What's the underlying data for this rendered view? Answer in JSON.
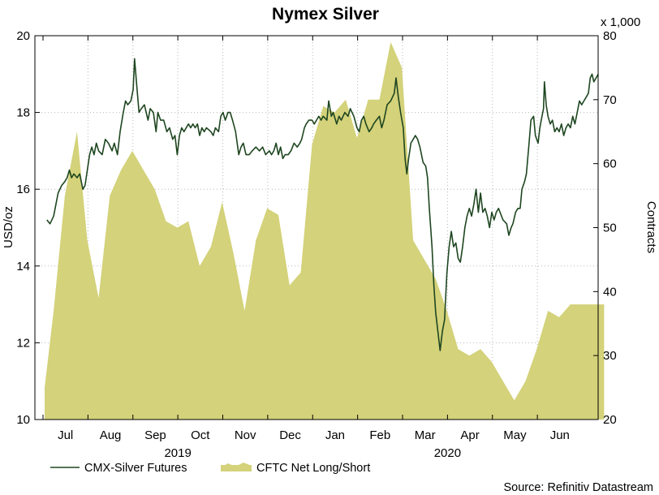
{
  "chart_data": {
    "type": "line",
    "title": "Nymex Silver",
    "left_axis": {
      "label": "USD/oz",
      "range": [
        10,
        20
      ],
      "ticks": [
        "10",
        "12",
        "14",
        "16",
        "18",
        "20"
      ],
      "tick_values": [
        10,
        12,
        14,
        16,
        18,
        20
      ]
    },
    "right_axis": {
      "label": "Contracts",
      "multiplier_label": "x 1,000",
      "range": [
        20,
        80
      ],
      "ticks": [
        "20",
        "30",
        "40",
        "50",
        "60",
        "70",
        "80"
      ],
      "tick_values": [
        20,
        30,
        40,
        50,
        60,
        70,
        80
      ]
    },
    "x_axis": {
      "range": [
        0,
        12
      ],
      "months": [
        "Jul",
        "Aug",
        "Sep",
        "Oct",
        "Nov",
        "Dec",
        "Jan",
        "Feb",
        "Mar",
        "Apr",
        "May",
        "Jun"
      ],
      "years": [
        {
          "label": "2019",
          "center": 3
        },
        {
          "label": "2020",
          "center": 9
        }
      ]
    },
    "grid": true,
    "legend": {
      "position": "bottom-left",
      "line_label": "CMX-Silver Futures",
      "area_label": "CFTC Net Long/Short"
    },
    "source": "Source: Refinitiv Datastream",
    "series": [
      {
        "name": "CMX-Silver Futures",
        "axis": "left",
        "color": "#1e4620",
        "points": [
          [
            0.05,
            15.2
          ],
          [
            0.12,
            15.1
          ],
          [
            0.2,
            15.3
          ],
          [
            0.3,
            15.9
          ],
          [
            0.38,
            16.1
          ],
          [
            0.45,
            16.2
          ],
          [
            0.5,
            16.3
          ],
          [
            0.55,
            16.5
          ],
          [
            0.6,
            16.3
          ],
          [
            0.65,
            16.4
          ],
          [
            0.72,
            16.3
          ],
          [
            0.78,
            16.4
          ],
          [
            0.85,
            16.0
          ],
          [
            0.9,
            16.1
          ],
          [
            0.95,
            16.5
          ],
          [
            1.0,
            16.9
          ],
          [
            1.05,
            17.1
          ],
          [
            1.1,
            16.9
          ],
          [
            1.15,
            17.2
          ],
          [
            1.2,
            17.0
          ],
          [
            1.28,
            16.9
          ],
          [
            1.35,
            17.3
          ],
          [
            1.42,
            17.2
          ],
          [
            1.5,
            17.0
          ],
          [
            1.55,
            17.2
          ],
          [
            1.62,
            16.9
          ],
          [
            1.68,
            17.5
          ],
          [
            1.75,
            18.0
          ],
          [
            1.8,
            18.3
          ],
          [
            1.85,
            18.2
          ],
          [
            1.92,
            18.3
          ],
          [
            1.97,
            18.6
          ],
          [
            2.0,
            19.4
          ],
          [
            2.05,
            18.7
          ],
          [
            2.1,
            18.0
          ],
          [
            2.15,
            18.1
          ],
          [
            2.22,
            18.2
          ],
          [
            2.3,
            17.8
          ],
          [
            2.35,
            18.1
          ],
          [
            2.42,
            18.0
          ],
          [
            2.48,
            17.5
          ],
          [
            2.52,
            18.0
          ],
          [
            2.58,
            17.8
          ],
          [
            2.65,
            17.8
          ],
          [
            2.72,
            17.5
          ],
          [
            2.78,
            17.6
          ],
          [
            2.85,
            17.3
          ],
          [
            2.9,
            17.4
          ],
          [
            2.95,
            16.9
          ],
          [
            3.0,
            17.4
          ],
          [
            3.05,
            17.6
          ],
          [
            3.1,
            17.5
          ],
          [
            3.15,
            17.6
          ],
          [
            3.2,
            17.7
          ],
          [
            3.25,
            17.6
          ],
          [
            3.3,
            17.7
          ],
          [
            3.35,
            17.6
          ],
          [
            3.4,
            17.7
          ],
          [
            3.45,
            17.4
          ],
          [
            3.5,
            17.6
          ],
          [
            3.55,
            17.5
          ],
          [
            3.6,
            17.6
          ],
          [
            3.7,
            17.5
          ],
          [
            3.75,
            17.4
          ],
          [
            3.8,
            17.6
          ],
          [
            3.87,
            17.5
          ],
          [
            3.92,
            17.9
          ],
          [
            3.97,
            18.0
          ],
          [
            4.02,
            17.8
          ],
          [
            4.08,
            18.0
          ],
          [
            4.13,
            18.0
          ],
          [
            4.18,
            17.8
          ],
          [
            4.25,
            17.5
          ],
          [
            4.32,
            16.9
          ],
          [
            4.37,
            17.1
          ],
          [
            4.42,
            17.2
          ],
          [
            4.48,
            16.9
          ],
          [
            4.55,
            16.9
          ],
          [
            4.62,
            17.0
          ],
          [
            4.7,
            17.1
          ],
          [
            4.78,
            17.0
          ],
          [
            4.85,
            17.1
          ],
          [
            4.92,
            16.9
          ],
          [
            5.0,
            17.0
          ],
          [
            5.05,
            16.9
          ],
          [
            5.1,
            17.0
          ],
          [
            5.15,
            17.2
          ],
          [
            5.2,
            16.9
          ],
          [
            5.25,
            17.1
          ],
          [
            5.3,
            16.8
          ],
          [
            5.35,
            16.9
          ],
          [
            5.42,
            16.9
          ],
          [
            5.48,
            17.0
          ],
          [
            5.55,
            17.2
          ],
          [
            5.62,
            17.1
          ],
          [
            5.68,
            17.2
          ],
          [
            5.72,
            17.3
          ],
          [
            5.78,
            17.6
          ],
          [
            5.82,
            17.7
          ],
          [
            5.88,
            17.8
          ],
          [
            5.95,
            17.8
          ],
          [
            6.0,
            17.7
          ],
          [
            6.05,
            17.8
          ],
          [
            6.1,
            17.9
          ],
          [
            6.15,
            17.8
          ],
          [
            6.2,
            17.9
          ],
          [
            6.28,
            17.8
          ],
          [
            6.32,
            18.3
          ],
          [
            6.38,
            17.9
          ],
          [
            6.42,
            18.0
          ],
          [
            6.5,
            17.7
          ],
          [
            6.55,
            17.9
          ],
          [
            6.6,
            17.8
          ],
          [
            6.68,
            18.0
          ],
          [
            6.75,
            17.9
          ],
          [
            6.8,
            18.1
          ],
          [
            6.88,
            17.9
          ],
          [
            6.95,
            17.6
          ],
          [
            7.0,
            17.5
          ],
          [
            7.05,
            17.8
          ],
          [
            7.1,
            17.9
          ],
          [
            7.15,
            17.7
          ],
          [
            7.22,
            17.5
          ],
          [
            7.28,
            17.6
          ],
          [
            7.32,
            17.7
          ],
          [
            7.38,
            17.8
          ],
          [
            7.45,
            17.9
          ],
          [
            7.5,
            17.6
          ],
          [
            7.55,
            17.8
          ],
          [
            7.62,
            18.2
          ],
          [
            7.7,
            18.3
          ],
          [
            7.78,
            18.5
          ],
          [
            7.82,
            18.9
          ],
          [
            7.87,
            18.4
          ],
          [
            7.92,
            18.0
          ],
          [
            7.98,
            17.6
          ],
          [
            8.02,
            16.8
          ],
          [
            8.06,
            16.4
          ],
          [
            8.1,
            16.8
          ],
          [
            8.15,
            17.2
          ],
          [
            8.2,
            17.3
          ],
          [
            8.25,
            17.4
          ],
          [
            8.3,
            17.3
          ],
          [
            8.35,
            17.1
          ],
          [
            8.42,
            16.7
          ],
          [
            8.48,
            16.6
          ],
          [
            8.52,
            16.3
          ],
          [
            8.56,
            15.5
          ],
          [
            8.62,
            14.5
          ],
          [
            8.66,
            13.5
          ],
          [
            8.7,
            12.8
          ],
          [
            8.75,
            12.3
          ],
          [
            8.8,
            11.8
          ],
          [
            8.85,
            12.3
          ],
          [
            8.9,
            12.6
          ],
          [
            8.95,
            13.8
          ],
          [
            9.0,
            14.5
          ],
          [
            9.05,
            14.9
          ],
          [
            9.1,
            14.5
          ],
          [
            9.15,
            14.6
          ],
          [
            9.2,
            14.2
          ],
          [
            9.25,
            14.1
          ],
          [
            9.3,
            14.5
          ],
          [
            9.35,
            15.0
          ],
          [
            9.4,
            15.3
          ],
          [
            9.45,
            15.5
          ],
          [
            9.5,
            15.3
          ],
          [
            9.55,
            15.6
          ],
          [
            9.6,
            16.0
          ],
          [
            9.65,
            15.4
          ],
          [
            9.7,
            15.9
          ],
          [
            9.75,
            15.4
          ],
          [
            9.8,
            15.5
          ],
          [
            9.85,
            15.3
          ],
          [
            9.9,
            15.0
          ],
          [
            9.95,
            15.4
          ],
          [
            10.0,
            15.2
          ],
          [
            10.05,
            15.4
          ],
          [
            10.1,
            15.5
          ],
          [
            10.2,
            15.2
          ],
          [
            10.28,
            15.1
          ],
          [
            10.33,
            14.8
          ],
          [
            10.38,
            15.0
          ],
          [
            10.42,
            15.1
          ],
          [
            10.48,
            15.4
          ],
          [
            10.53,
            15.5
          ],
          [
            10.58,
            15.5
          ],
          [
            10.62,
            16.0
          ],
          [
            10.68,
            16.2
          ],
          [
            10.72,
            16.4
          ],
          [
            10.78,
            17.2
          ],
          [
            10.82,
            17.8
          ],
          [
            10.88,
            17.9
          ],
          [
            10.92,
            17.4
          ],
          [
            10.98,
            17.2
          ],
          [
            11.02,
            17.6
          ],
          [
            11.05,
            17.8
          ],
          [
            11.1,
            18.1
          ],
          [
            11.12,
            18.8
          ],
          [
            11.16,
            18.2
          ],
          [
            11.2,
            17.9
          ],
          [
            11.25,
            17.7
          ],
          [
            11.3,
            17.8
          ],
          [
            11.35,
            17.5
          ],
          [
            11.4,
            17.6
          ],
          [
            11.45,
            17.5
          ],
          [
            11.5,
            17.7
          ],
          [
            11.55,
            17.4
          ],
          [
            11.6,
            17.6
          ],
          [
            11.65,
            17.7
          ],
          [
            11.7,
            17.6
          ],
          [
            11.75,
            17.9
          ],
          [
            11.8,
            17.7
          ],
          [
            11.85,
            18.0
          ],
          [
            11.9,
            18.3
          ],
          [
            11.95,
            18.2
          ],
          [
            12.0,
            18.3
          ],
          [
            12.05,
            18.4
          ],
          [
            12.1,
            18.5
          ],
          [
            12.14,
            18.9
          ],
          [
            12.18,
            19.0
          ],
          [
            12.22,
            18.8
          ],
          [
            12.27,
            18.9
          ],
          [
            12.32,
            19.0
          ]
        ]
      },
      {
        "name": "CFTC Net Long/Short",
        "axis": "right",
        "color": "#d4d27a",
        "points": [
          [
            0.0,
            25
          ],
          [
            0.2,
            37
          ],
          [
            0.45,
            55
          ],
          [
            0.72,
            65
          ],
          [
            0.95,
            48
          ],
          [
            1.2,
            39
          ],
          [
            1.45,
            55
          ],
          [
            1.7,
            59
          ],
          [
            1.95,
            62
          ],
          [
            2.2,
            59
          ],
          [
            2.45,
            56
          ],
          [
            2.7,
            51
          ],
          [
            2.95,
            50
          ],
          [
            3.2,
            51
          ],
          [
            3.45,
            44
          ],
          [
            3.7,
            47
          ],
          [
            3.95,
            54
          ],
          [
            4.2,
            46
          ],
          [
            4.45,
            37
          ],
          [
            4.7,
            48
          ],
          [
            4.95,
            53
          ],
          [
            5.2,
            52
          ],
          [
            5.45,
            41
          ],
          [
            5.7,
            43
          ],
          [
            5.95,
            63
          ],
          [
            6.2,
            69
          ],
          [
            6.45,
            68
          ],
          [
            6.7,
            70
          ],
          [
            6.95,
            64
          ],
          [
            7.2,
            70
          ],
          [
            7.45,
            70
          ],
          [
            7.7,
            79
          ],
          [
            7.95,
            75
          ],
          [
            8.2,
            48
          ],
          [
            8.45,
            45
          ],
          [
            8.7,
            42
          ],
          [
            8.95,
            37
          ],
          [
            9.2,
            31
          ],
          [
            9.45,
            30
          ],
          [
            9.7,
            31
          ],
          [
            9.95,
            29
          ],
          [
            10.2,
            26
          ],
          [
            10.45,
            23
          ],
          [
            10.7,
            26
          ],
          [
            10.95,
            31
          ],
          [
            11.2,
            37
          ],
          [
            11.45,
            36
          ],
          [
            11.7,
            38
          ],
          [
            11.95,
            38
          ],
          [
            12.2,
            38
          ],
          [
            12.45,
            38
          ]
        ]
      }
    ]
  }
}
